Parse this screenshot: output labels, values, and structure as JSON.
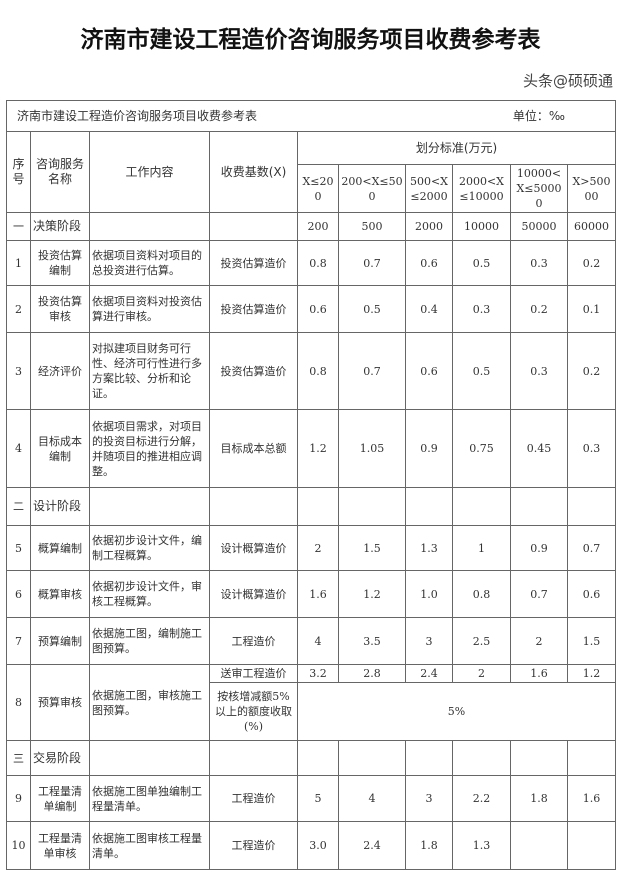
{
  "page_title": "济南市建设工程造价咨询服务项目收费参考表",
  "table": {
    "caption": "济南市建设工程造价咨询服务项目收费参考表",
    "unit": "单位：‰",
    "headers": {
      "no": "序号",
      "name": "咨询服务名称",
      "content": "工作内容",
      "base": "收费基数(X)",
      "criteria": "划分标准(万元)",
      "ranges": [
        "X≤200",
        "200<X≤500",
        "500<X≤2000",
        "2000<X≤10000",
        "10000<X≤50000",
        "X>50000"
      ]
    },
    "rows": [
      {
        "type": "stage",
        "no": "一",
        "name": "决策阶段",
        "values": [
          "200",
          "500",
          "2000",
          "10000",
          "50000",
          "60000"
        ]
      },
      {
        "no": "1",
        "name": "投资估算编制",
        "content": "依据项目资料对项目的总投资进行估算。",
        "base": "投资估算造价",
        "values": [
          "0.8",
          "0.7",
          "0.6",
          "0.5",
          "0.3",
          "0.2"
        ]
      },
      {
        "no": "2",
        "name": "投资估算审核",
        "content": "依据项目资料对投资估算进行审核。",
        "base": "投资估算造价",
        "values": [
          "0.6",
          "0.5",
          "0.4",
          "0.3",
          "0.2",
          "0.1"
        ]
      },
      {
        "no": "3",
        "name": "经济评价",
        "content": "对拟建项目财务可行性、经济可行性进行多方案比较、分析和论证。",
        "base": "投资估算造价",
        "values": [
          "0.8",
          "0.7",
          "0.6",
          "0.5",
          "0.3",
          "0.2"
        ]
      },
      {
        "no": "4",
        "name": "目标成本编制",
        "content": "依据项目需求，对项目的投资目标进行分解，并随项目的推进相应调整。",
        "base": "目标成本总额",
        "values": [
          "1.2",
          "1.05",
          "0.9",
          "0.75",
          "0.45",
          "0.3"
        ]
      },
      {
        "type": "stage",
        "no": "二",
        "name": "设计阶段",
        "values": [
          "",
          "",
          "",
          "",
          "",
          ""
        ]
      },
      {
        "no": "5",
        "name": "概算编制",
        "content": "依据初步设计文件，编制工程概算。",
        "base": "设计概算造价",
        "values": [
          "2",
          "1.5",
          "1.3",
          "1",
          "0.9",
          "0.7"
        ]
      },
      {
        "no": "6",
        "name": "概算审核",
        "content": "依据初步设计文件，审核工程概算。",
        "base": "设计概算造价",
        "values": [
          "1.6",
          "1.2",
          "1.0",
          "0.8",
          "0.7",
          "0.6"
        ]
      },
      {
        "no": "7",
        "name": "预算编制",
        "content": "依据施工图，编制施工图预算。",
        "base": "工程造价",
        "values": [
          "4",
          "3.5",
          "3",
          "2.5",
          "2",
          "1.5"
        ]
      },
      {
        "no": "8",
        "name": "预算审核",
        "content": "依据施工图，审核施工图预算。",
        "base": "送审工程造价",
        "values": [
          "3.2",
          "2.8",
          "2.4",
          "2",
          "1.6",
          "1.2"
        ],
        "base2": "按核增减额5%以上的额度收取(%)",
        "value2": "5%"
      },
      {
        "type": "stage",
        "no": "三",
        "name": "交易阶段",
        "values": [
          "",
          "",
          "",
          "",
          "",
          ""
        ]
      },
      {
        "no": "9",
        "name": "工程量清单编制",
        "content": "依据施工图单独编制工程量清单。",
        "base": "工程造价",
        "values": [
          "5",
          "4",
          "3",
          "2.2",
          "1.8",
          "1.6"
        ]
      },
      {
        "no": "10",
        "name": "工程量清单审核",
        "content": "依据施工图审核工程量清单。",
        "base": "工程造价",
        "values": [
          "3.0",
          "2.4",
          "1.8",
          "1.3",
          "",
          ""
        ]
      }
    ]
  },
  "watermark": "头条@硕硕通"
}
